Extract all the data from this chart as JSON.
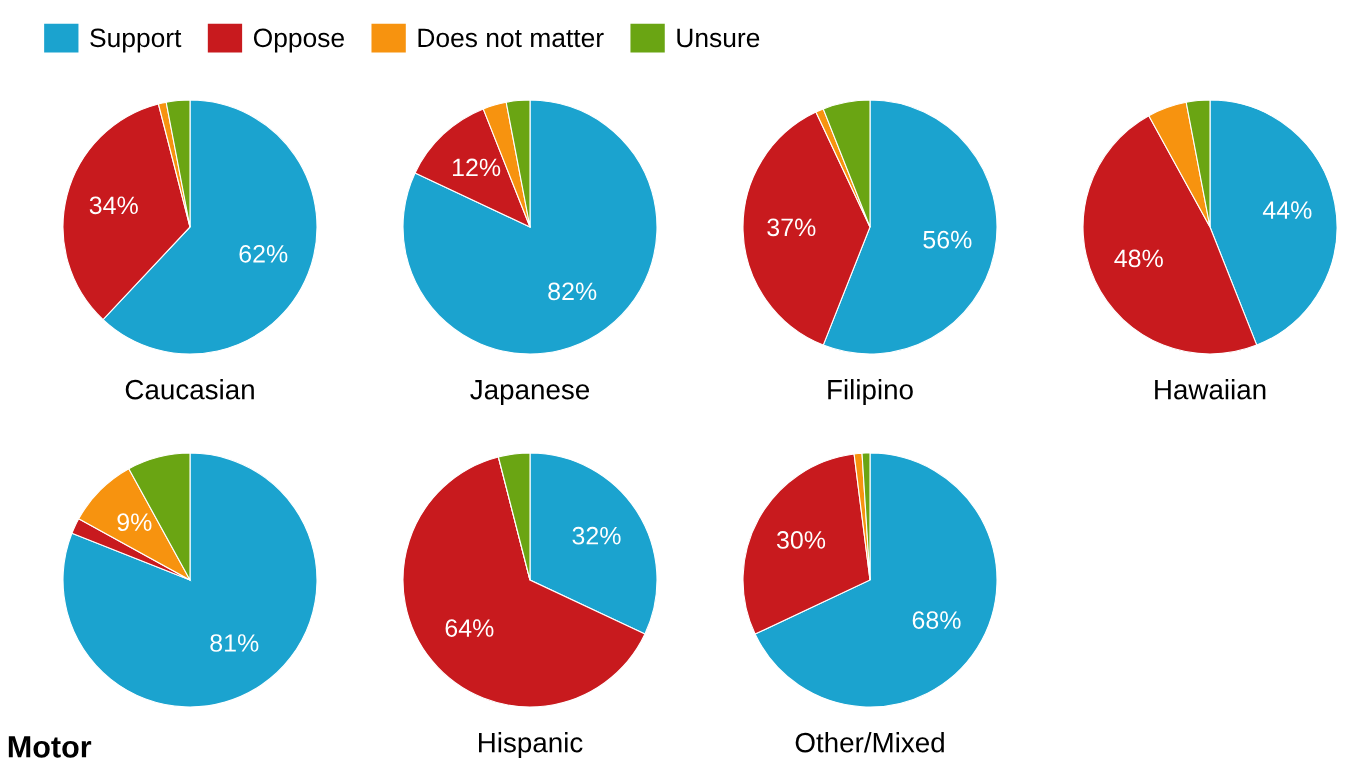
{
  "chart_data": [
    {
      "type": "pie",
      "title": "Caucasian",
      "categories": [
        "Support",
        "Oppose",
        "Does not matter",
        "Unsure"
      ],
      "values": [
        62,
        34,
        1,
        3
      ],
      "colors": [
        "#1ba3cf",
        "#c81a1e",
        "#f7930f",
        "#6aa513"
      ],
      "value_labels": [
        "62%",
        "34%",
        null,
        null
      ],
      "legend": "top right"
    },
    {
      "type": "pie",
      "title": "Japanese",
      "values": [
        82,
        12,
        3,
        3
      ],
      "colors": [
        "#1ba3cf",
        "#c81a1e",
        "#f7930f",
        "#6aa513"
      ],
      "value_labels": [
        "82%",
        "12%",
        null,
        null
      ]
    },
    {
      "type": "pie",
      "title": "Filipino",
      "values": [
        56,
        37,
        1,
        6
      ],
      "colors": [
        "#1ba3cf",
        "#c81a1e",
        "#f7930f",
        "#6aa513"
      ],
      "value_labels": [
        "56%",
        "37%",
        null,
        null
      ]
    },
    {
      "type": "pie",
      "title": "Hawaiian",
      "values": [
        44,
        48,
        5,
        3
      ],
      "colors": [
        "#1ba3cf",
        "#c81a1e",
        "#f7930f",
        "#6aa513"
      ],
      "value_labels": [
        "44%",
        "48%",
        null,
        null
      ]
    },
    {
      "type": "pie",
      "values": [
        81,
        2,
        9,
        8
      ],
      "colors": [
        "#1ba3cf",
        "#c81a1e",
        "#f7930f",
        "#6aa513"
      ],
      "value_labels": [
        "81%",
        null,
        "9%",
        null
      ],
      "annotations": [
        "Motor"
      ]
    },
    {
      "type": "pie",
      "title": "Hispanic",
      "values": [
        32,
        64,
        0,
        4
      ],
      "colors": [
        "#1ba3cf",
        "#c81a1e",
        "#f7930f",
        "#6aa513"
      ],
      "value_labels": [
        "32%",
        "64%",
        null,
        null
      ]
    },
    {
      "type": "pie",
      "title": "Other/Mixed",
      "values": [
        68,
        30,
        1,
        1
      ],
      "colors": [
        "#1ba3cf",
        "#c81a1e",
        "#f7930f",
        "#6aa513"
      ],
      "value_labels": [
        "68%",
        "30%",
        null,
        null
      ]
    }
  ]
}
